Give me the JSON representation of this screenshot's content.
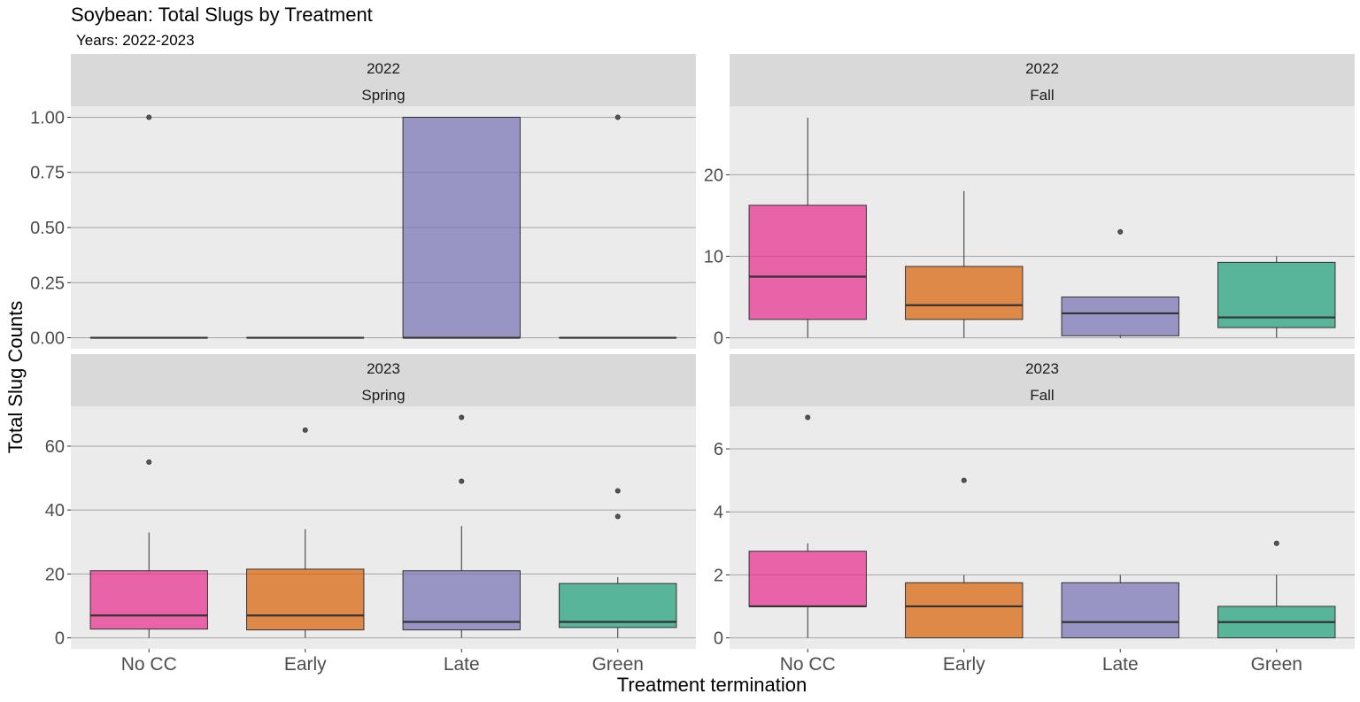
{
  "chart_data": {
    "type": "boxplot",
    "title": "Soybean: Total Slugs by Treatment",
    "subtitle": "Years: 2022-2023",
    "xlabel": "Treatment termination",
    "ylabel": "Total Slug Counts",
    "categories": [
      "No CC",
      "Early",
      "Late",
      "Green"
    ],
    "colors": {
      "No CC": "#e7298a",
      "Early": "#d95f02",
      "Late": "#7570b3",
      "Green": "#1b9e77"
    },
    "panel_background": "#ebebeb",
    "strip_background": "#d9d9d9",
    "grid": true,
    "panels": [
      {
        "year": "2022",
        "season": "Spring",
        "ylim": [
          -0.05,
          1.05
        ],
        "yticks": [
          0,
          0.25,
          0.5,
          0.75,
          1
        ],
        "ytick_labels": [
          "0.00",
          "0.25",
          "0.50",
          "0.75",
          "1.00"
        ],
        "boxes": [
          {
            "category": "No CC",
            "q1": 0,
            "median": 0,
            "q3": 0,
            "lower": 0,
            "upper": 0,
            "outliers": [
              1
            ]
          },
          {
            "category": "Early",
            "q1": 0,
            "median": 0,
            "q3": 0,
            "lower": 0,
            "upper": 0,
            "outliers": []
          },
          {
            "category": "Late",
            "q1": 0,
            "median": 0,
            "q3": 1,
            "lower": 0,
            "upper": 1,
            "outliers": []
          },
          {
            "category": "Green",
            "q1": 0,
            "median": 0,
            "q3": 0,
            "lower": 0,
            "upper": 0,
            "outliers": [
              1
            ]
          }
        ]
      },
      {
        "year": "2022",
        "season": "Fall",
        "ylim": [
          -1.35,
          28.4
        ],
        "yticks": [
          0,
          10,
          20
        ],
        "ytick_labels": [
          "0",
          "10",
          "20"
        ],
        "boxes": [
          {
            "category": "No CC",
            "q1": 2.25,
            "median": 7.5,
            "q3": 16.25,
            "lower": 0,
            "upper": 27,
            "outliers": []
          },
          {
            "category": "Early",
            "q1": 2.25,
            "median": 4,
            "q3": 8.75,
            "lower": 0,
            "upper": 18,
            "outliers": []
          },
          {
            "category": "Late",
            "q1": 0.25,
            "median": 3,
            "q3": 5,
            "lower": 0,
            "upper": 5,
            "outliers": [
              13
            ]
          },
          {
            "category": "Green",
            "q1": 1.25,
            "median": 2.5,
            "q3": 9.25,
            "lower": 0,
            "upper": 10,
            "outliers": []
          }
        ]
      },
      {
        "year": "2023",
        "season": "Spring",
        "ylim": [
          -3.45,
          72.45
        ],
        "yticks": [
          0,
          20,
          40,
          60
        ],
        "ytick_labels": [
          "0",
          "20",
          "40",
          "60"
        ],
        "boxes": [
          {
            "category": "No CC",
            "q1": 2.75,
            "median": 7,
            "q3": 21,
            "lower": 0,
            "upper": 33,
            "outliers": [
              55
            ]
          },
          {
            "category": "Early",
            "q1": 2.5,
            "median": 7,
            "q3": 21.5,
            "lower": 0,
            "upper": 34,
            "outliers": [
              65
            ]
          },
          {
            "category": "Late",
            "q1": 2.5,
            "median": 5,
            "q3": 21,
            "lower": 0,
            "upper": 35,
            "outliers": [
              49,
              69
            ]
          },
          {
            "category": "Green",
            "q1": 3.25,
            "median": 5,
            "q3": 17,
            "lower": 0,
            "upper": 19,
            "outliers": [
              38,
              46
            ]
          }
        ]
      },
      {
        "year": "2023",
        "season": "Fall",
        "ylim": [
          -0.35,
          7.35
        ],
        "yticks": [
          0,
          2,
          4,
          6
        ],
        "ytick_labels": [
          "0",
          "2",
          "4",
          "6"
        ],
        "boxes": [
          {
            "category": "No CC",
            "q1": 1,
            "median": 1,
            "q3": 2.75,
            "lower": 0,
            "upper": 3,
            "outliers": [
              7
            ]
          },
          {
            "category": "Early",
            "q1": 0,
            "median": 1,
            "q3": 1.75,
            "lower": 0,
            "upper": 2,
            "outliers": [
              5
            ]
          },
          {
            "category": "Late",
            "q1": 0,
            "median": 0.5,
            "q3": 1.75,
            "lower": 0,
            "upper": 2,
            "outliers": []
          },
          {
            "category": "Green",
            "q1": 0,
            "median": 0.5,
            "q3": 1,
            "lower": 0,
            "upper": 2,
            "outliers": [
              3
            ]
          }
        ]
      }
    ]
  }
}
